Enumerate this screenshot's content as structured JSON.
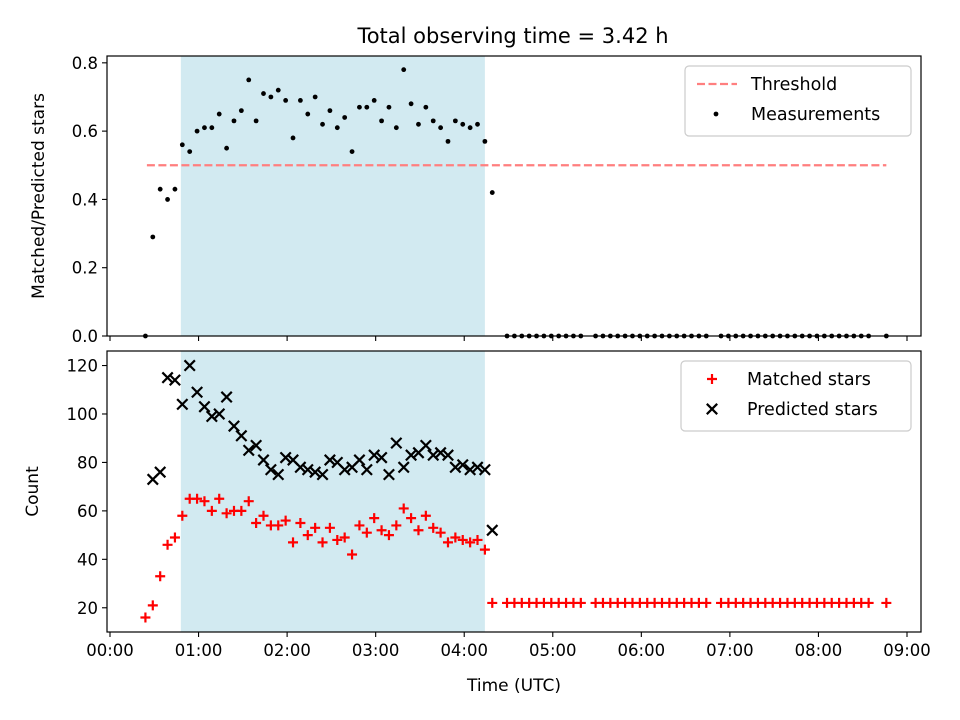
{
  "chart_data": [
    {
      "type": "scatter",
      "title": "Total observing time = 3.42 h",
      "xlabel": "",
      "ylabel": "Matched/Predicted stars",
      "xlim": [
        "00:00",
        "09:00"
      ],
      "ylim": [
        0,
        0.82
      ],
      "x_ticks": [
        "00:00",
        "01:00",
        "02:00",
        "03:00",
        "04:00",
        "05:00",
        "06:00",
        "07:00",
        "08:00",
        "09:00"
      ],
      "y_ticks": [
        "0.0",
        "0.2",
        "0.4",
        "0.6",
        "0.8"
      ],
      "shaded_span": {
        "start": "00:48",
        "end": "04:14",
        "color": "#add8e6"
      },
      "legend_position": "upper right",
      "series": [
        {
          "name": "Threshold",
          "style": "dashed-line",
          "color": "#ff7f7f",
          "points": [
            [
              "00:25",
              0.5
            ],
            [
              "08:46",
              0.5
            ]
          ]
        },
        {
          "name": "Measurements",
          "style": "dot",
          "color": "#000000",
          "points": [
            [
              "00:24",
              0.0
            ],
            [
              "00:29",
              0.29
            ],
            [
              "00:34",
              0.43
            ],
            [
              "00:39",
              0.4
            ],
            [
              "00:44",
              0.43
            ],
            [
              "00:49",
              0.56
            ],
            [
              "00:54",
              0.54
            ],
            [
              "00:59",
              0.6
            ],
            [
              "01:04",
              0.61
            ],
            [
              "01:09",
              0.61
            ],
            [
              "01:14",
              0.65
            ],
            [
              "01:19",
              0.55
            ],
            [
              "01:24",
              0.63
            ],
            [
              "01:29",
              0.66
            ],
            [
              "01:34",
              0.75
            ],
            [
              "01:39",
              0.63
            ],
            [
              "01:44",
              0.71
            ],
            [
              "01:49",
              0.7
            ],
            [
              "01:54",
              0.72
            ],
            [
              "01:59",
              0.69
            ],
            [
              "02:04",
              0.58
            ],
            [
              "02:09",
              0.69
            ],
            [
              "02:14",
              0.65
            ],
            [
              "02:19",
              0.7
            ],
            [
              "02:24",
              0.62
            ],
            [
              "02:29",
              0.66
            ],
            [
              "02:34",
              0.61
            ],
            [
              "02:39",
              0.64
            ],
            [
              "02:44",
              0.54
            ],
            [
              "02:49",
              0.67
            ],
            [
              "02:54",
              0.67
            ],
            [
              "02:59",
              0.69
            ],
            [
              "03:04",
              0.63
            ],
            [
              "03:09",
              0.67
            ],
            [
              "03:14",
              0.61
            ],
            [
              "03:19",
              0.78
            ],
            [
              "03:24",
              0.68
            ],
            [
              "03:29",
              0.62
            ],
            [
              "03:34",
              0.67
            ],
            [
              "03:39",
              0.63
            ],
            [
              "03:44",
              0.61
            ],
            [
              "03:49",
              0.57
            ],
            [
              "03:54",
              0.63
            ],
            [
              "03:59",
              0.62
            ],
            [
              "04:04",
              0.61
            ],
            [
              "04:09",
              0.62
            ],
            [
              "04:14",
              0.57
            ],
            [
              "04:19",
              0.42
            ],
            [
              "04:29",
              0.0
            ],
            [
              "04:34",
              0.0
            ],
            [
              "04:39",
              0.0
            ],
            [
              "04:44",
              0.0
            ],
            [
              "04:49",
              0.0
            ],
            [
              "04:54",
              0.0
            ],
            [
              "04:59",
              0.0
            ],
            [
              "05:04",
              0.0
            ],
            [
              "05:09",
              0.0
            ],
            [
              "05:14",
              0.0
            ],
            [
              "05:19",
              0.0
            ],
            [
              "05:29",
              0.0
            ],
            [
              "05:34",
              0.0
            ],
            [
              "05:39",
              0.0
            ],
            [
              "05:44",
              0.0
            ],
            [
              "05:49",
              0.0
            ],
            [
              "05:54",
              0.0
            ],
            [
              "05:59",
              0.0
            ],
            [
              "06:04",
              0.0
            ],
            [
              "06:09",
              0.0
            ],
            [
              "06:14",
              0.0
            ],
            [
              "06:19",
              0.0
            ],
            [
              "06:24",
              0.0
            ],
            [
              "06:29",
              0.0
            ],
            [
              "06:34",
              0.0
            ],
            [
              "06:39",
              0.0
            ],
            [
              "06:44",
              0.0
            ],
            [
              "06:54",
              0.0
            ],
            [
              "06:59",
              0.0
            ],
            [
              "07:04",
              0.0
            ],
            [
              "07:09",
              0.0
            ],
            [
              "07:14",
              0.0
            ],
            [
              "07:19",
              0.0
            ],
            [
              "07:24",
              0.0
            ],
            [
              "07:29",
              0.0
            ],
            [
              "07:34",
              0.0
            ],
            [
              "07:39",
              0.0
            ],
            [
              "07:44",
              0.0
            ],
            [
              "07:49",
              0.0
            ],
            [
              "07:54",
              0.0
            ],
            [
              "07:59",
              0.0
            ],
            [
              "08:04",
              0.0
            ],
            [
              "08:09",
              0.0
            ],
            [
              "08:14",
              0.0
            ],
            [
              "08:19",
              0.0
            ],
            [
              "08:24",
              0.0
            ],
            [
              "08:29",
              0.0
            ],
            [
              "08:34",
              0.0
            ],
            [
              "08:46",
              0.0
            ]
          ]
        }
      ]
    },
    {
      "type": "scatter",
      "title": "",
      "xlabel": "Time (UTC)",
      "ylabel": "Count",
      "xlim": [
        "00:00",
        "09:00"
      ],
      "ylim": [
        10,
        126
      ],
      "x_ticks": [
        "00:00",
        "01:00",
        "02:00",
        "03:00",
        "04:00",
        "05:00",
        "06:00",
        "07:00",
        "08:00",
        "09:00"
      ],
      "y_ticks": [
        "20",
        "40",
        "60",
        "80",
        "100",
        "120"
      ],
      "shaded_span": {
        "start": "00:48",
        "end": "04:14",
        "color": "#add8e6"
      },
      "legend_position": "upper right",
      "series": [
        {
          "name": "Matched stars",
          "style": "plus",
          "color": "#ff0000",
          "points": [
            [
              "00:24",
              16
            ],
            [
              "00:29",
              21
            ],
            [
              "00:34",
              33
            ],
            [
              "00:39",
              46
            ],
            [
              "00:44",
              49
            ],
            [
              "00:49",
              58
            ],
            [
              "00:54",
              65
            ],
            [
              "00:59",
              65
            ],
            [
              "01:04",
              64
            ],
            [
              "01:09",
              60
            ],
            [
              "01:14",
              65
            ],
            [
              "01:19",
              59
            ],
            [
              "01:24",
              60
            ],
            [
              "01:29",
              60
            ],
            [
              "01:34",
              64
            ],
            [
              "01:39",
              55
            ],
            [
              "01:44",
              58
            ],
            [
              "01:49",
              54
            ],
            [
              "01:54",
              54
            ],
            [
              "01:59",
              56
            ],
            [
              "02:04",
              47
            ],
            [
              "02:09",
              55
            ],
            [
              "02:14",
              50
            ],
            [
              "02:19",
              53
            ],
            [
              "02:24",
              47
            ],
            [
              "02:29",
              53
            ],
            [
              "02:34",
              48
            ],
            [
              "02:39",
              49
            ],
            [
              "02:44",
              42
            ],
            [
              "02:49",
              54
            ],
            [
              "02:54",
              51
            ],
            [
              "02:59",
              57
            ],
            [
              "03:04",
              52
            ],
            [
              "03:09",
              50
            ],
            [
              "03:14",
              54
            ],
            [
              "03:19",
              61
            ],
            [
              "03:24",
              57
            ],
            [
              "03:29",
              52
            ],
            [
              "03:34",
              58
            ],
            [
              "03:39",
              53
            ],
            [
              "03:44",
              51
            ],
            [
              "03:49",
              47
            ],
            [
              "03:54",
              49
            ],
            [
              "03:59",
              48
            ],
            [
              "04:04",
              47
            ],
            [
              "04:09",
              48
            ],
            [
              "04:14",
              44
            ],
            [
              "04:19",
              22
            ],
            [
              "04:29",
              22
            ],
            [
              "04:34",
              22
            ],
            [
              "04:39",
              22
            ],
            [
              "04:44",
              22
            ],
            [
              "04:49",
              22
            ],
            [
              "04:54",
              22
            ],
            [
              "04:59",
              22
            ],
            [
              "05:04",
              22
            ],
            [
              "05:09",
              22
            ],
            [
              "05:14",
              22
            ],
            [
              "05:19",
              22
            ],
            [
              "05:29",
              22
            ],
            [
              "05:34",
              22
            ],
            [
              "05:39",
              22
            ],
            [
              "05:44",
              22
            ],
            [
              "05:49",
              22
            ],
            [
              "05:54",
              22
            ],
            [
              "05:59",
              22
            ],
            [
              "06:04",
              22
            ],
            [
              "06:09",
              22
            ],
            [
              "06:14",
              22
            ],
            [
              "06:19",
              22
            ],
            [
              "06:24",
              22
            ],
            [
              "06:29",
              22
            ],
            [
              "06:34",
              22
            ],
            [
              "06:39",
              22
            ],
            [
              "06:44",
              22
            ],
            [
              "06:54",
              22
            ],
            [
              "06:59",
              22
            ],
            [
              "07:04",
              22
            ],
            [
              "07:09",
              22
            ],
            [
              "07:14",
              22
            ],
            [
              "07:19",
              22
            ],
            [
              "07:24",
              22
            ],
            [
              "07:29",
              22
            ],
            [
              "07:34",
              22
            ],
            [
              "07:39",
              22
            ],
            [
              "07:44",
              22
            ],
            [
              "07:49",
              22
            ],
            [
              "07:54",
              22
            ],
            [
              "07:59",
              22
            ],
            [
              "08:04",
              22
            ],
            [
              "08:09",
              22
            ],
            [
              "08:14",
              22
            ],
            [
              "08:19",
              22
            ],
            [
              "08:24",
              22
            ],
            [
              "08:29",
              22
            ],
            [
              "08:34",
              22
            ],
            [
              "08:46",
              22
            ]
          ]
        },
        {
          "name": "Predicted stars",
          "style": "x",
          "color": "#000000",
          "points": [
            [
              "00:29",
              73
            ],
            [
              "00:34",
              76
            ],
            [
              "00:39",
              115
            ],
            [
              "00:44",
              114
            ],
            [
              "00:49",
              104
            ],
            [
              "00:54",
              120
            ],
            [
              "00:59",
              109
            ],
            [
              "01:04",
              103
            ],
            [
              "01:09",
              99
            ],
            [
              "01:14",
              100
            ],
            [
              "01:19",
              107
            ],
            [
              "01:24",
              95
            ],
            [
              "01:29",
              91
            ],
            [
              "01:34",
              85
            ],
            [
              "01:39",
              87
            ],
            [
              "01:44",
              81
            ],
            [
              "01:49",
              77
            ],
            [
              "01:54",
              75
            ],
            [
              "01:59",
              82
            ],
            [
              "02:04",
              81
            ],
            [
              "02:09",
              78
            ],
            [
              "02:14",
              77
            ],
            [
              "02:19",
              76
            ],
            [
              "02:24",
              75
            ],
            [
              "02:29",
              81
            ],
            [
              "02:34",
              80
            ],
            [
              "02:39",
              77
            ],
            [
              "02:44",
              78
            ],
            [
              "02:49",
              81
            ],
            [
              "02:54",
              77
            ],
            [
              "02:59",
              83
            ],
            [
              "03:04",
              82
            ],
            [
              "03:09",
              75
            ],
            [
              "03:14",
              88
            ],
            [
              "03:19",
              78
            ],
            [
              "03:24",
              83
            ],
            [
              "03:29",
              84
            ],
            [
              "03:34",
              87
            ],
            [
              "03:39",
              83
            ],
            [
              "03:44",
              84
            ],
            [
              "03:49",
              83
            ],
            [
              "03:54",
              78
            ],
            [
              "03:59",
              79
            ],
            [
              "04:04",
              77
            ],
            [
              "04:09",
              78
            ],
            [
              "04:14",
              77
            ],
            [
              "04:19",
              52
            ]
          ]
        }
      ]
    }
  ]
}
